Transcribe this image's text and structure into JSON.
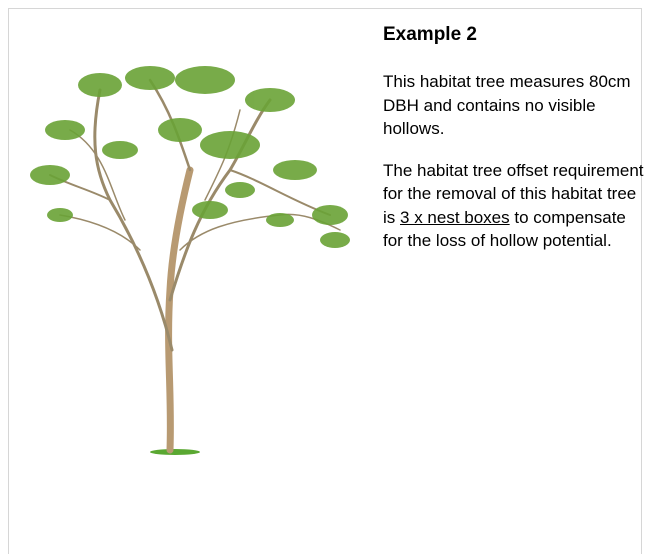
{
  "heading": "Example 2",
  "paragraphs": [
    {
      "text": "This habitat tree measures 80cm DBH and contains no visible hollows."
    },
    {
      "before": "The habitat tree offset requirement for the removal of this habitat tree is",
      "underlined": "3 x nest boxes",
      "after": "to compensate for the loss of hollow potential."
    }
  ]
}
